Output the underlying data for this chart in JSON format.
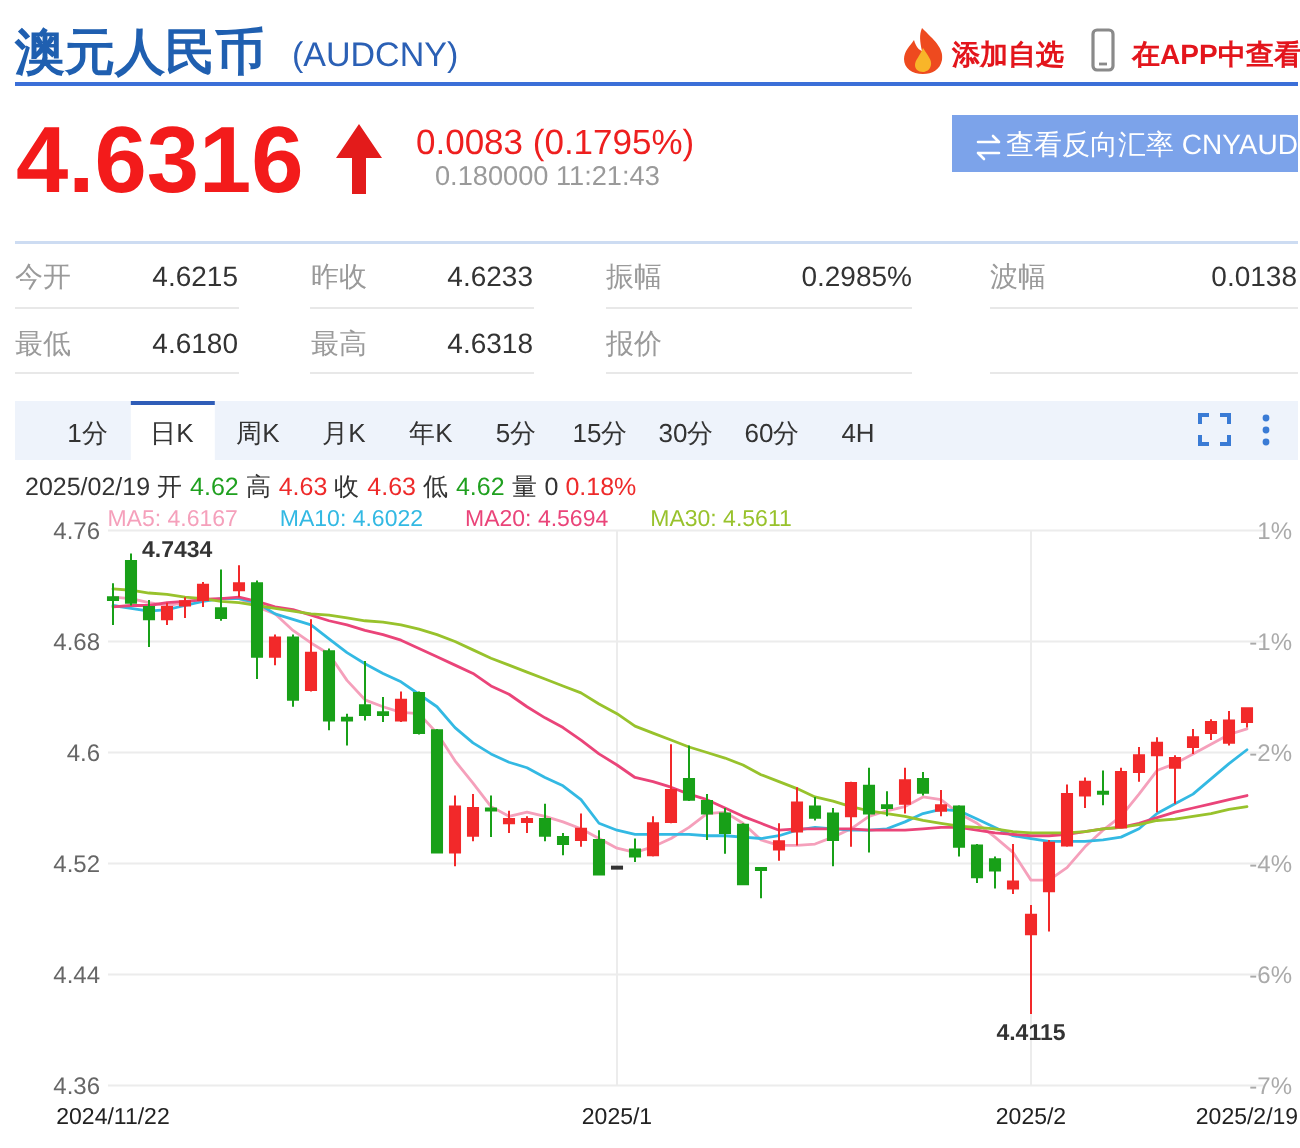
{
  "chart_data": {
    "type": "candlestick",
    "title": "澳元人民币",
    "subtitle": "(AUDCNY)",
    "categories": [
      "2024/11/22",
      null,
      null,
      null,
      null,
      null,
      null,
      null,
      null,
      null,
      null,
      null,
      null,
      null,
      null,
      null,
      null,
      null,
      null,
      null,
      null,
      null,
      null,
      null,
      null,
      null,
      null,
      null,
      "2025/1",
      null,
      null,
      null,
      null,
      null,
      null,
      null,
      null,
      null,
      null,
      null,
      null,
      null,
      null,
      null,
      null,
      null,
      null,
      null,
      null,
      null,
      null,
      "2025/2",
      null,
      null,
      null,
      null,
      null,
      null,
      null,
      null,
      null,
      null,
      null,
      "2025/2/19"
    ],
    "ohlc": [
      [
        4.712,
        4.722,
        4.692,
        4.71
      ],
      [
        4.738,
        4.7434,
        4.706,
        4.708
      ],
      [
        4.705,
        4.71,
        4.676,
        4.696
      ],
      [
        4.696,
        4.708,
        4.692,
        4.705
      ],
      [
        4.706,
        4.712,
        4.697,
        4.709
      ],
      [
        4.71,
        4.723,
        4.705,
        4.721
      ],
      [
        4.704,
        4.732,
        4.695,
        4.697
      ],
      [
        4.717,
        4.735,
        4.712,
        4.722
      ],
      [
        4.722,
        4.724,
        4.653,
        4.669
      ],
      [
        4.669,
        4.685,
        4.663,
        4.683
      ],
      [
        4.683,
        4.685,
        4.633,
        4.638
      ],
      [
        4.645,
        4.696,
        4.644,
        4.672
      ],
      [
        4.673,
        4.675,
        4.616,
        4.623
      ],
      [
        4.625,
        4.628,
        4.605,
        4.623
      ],
      [
        4.634,
        4.666,
        4.623,
        4.627
      ],
      [
        4.629,
        4.64,
        4.622,
        4.627
      ],
      [
        4.623,
        4.644,
        4.622,
        4.638
      ],
      [
        4.643,
        4.644,
        4.613,
        4.614
      ],
      [
        4.616,
        4.617,
        4.528,
        4.528
      ],
      [
        4.528,
        4.569,
        4.518,
        4.561
      ],
      [
        4.54,
        4.57,
        4.536,
        4.56
      ],
      [
        4.559,
        4.569,
        4.539,
        4.558
      ],
      [
        4.549,
        4.558,
        4.542,
        4.552
      ],
      [
        4.55,
        4.554,
        4.542,
        4.552
      ],
      [
        4.552,
        4.563,
        4.536,
        4.54
      ],
      [
        4.539,
        4.542,
        4.526,
        4.534
      ],
      [
        4.537,
        4.556,
        4.532,
        4.545
      ],
      [
        4.537,
        4.544,
        4.512,
        4.512
      ],
      [
        4.517,
        4.517,
        4.517,
        4.517
      ],
      [
        4.53,
        4.538,
        4.521,
        4.525
      ],
      [
        4.526,
        4.554,
        4.525,
        4.549
      ],
      [
        4.55,
        4.606,
        4.549,
        4.573
      ],
      [
        4.581,
        4.605,
        4.565,
        4.566
      ],
      [
        4.565,
        4.57,
        4.537,
        4.556
      ],
      [
        4.556,
        4.56,
        4.527,
        4.542
      ],
      [
        4.548,
        4.549,
        4.505,
        4.505
      ],
      [
        4.516,
        4.517,
        4.495,
        4.515
      ],
      [
        4.53,
        4.549,
        4.522,
        4.536
      ],
      [
        4.543,
        4.575,
        4.533,
        4.564
      ],
      [
        4.561,
        4.568,
        4.551,
        4.553
      ],
      [
        4.556,
        4.56,
        4.518,
        4.537
      ],
      [
        4.554,
        4.579,
        4.532,
        4.578
      ],
      [
        4.576,
        4.589,
        4.528,
        4.556
      ],
      [
        4.562,
        4.572,
        4.554,
        4.56
      ],
      [
        4.563,
        4.589,
        4.556,
        4.58
      ],
      [
        4.581,
        4.586,
        4.569,
        4.571
      ],
      [
        4.558,
        4.573,
        4.554,
        4.562
      ],
      [
        4.561,
        4.562,
        4.525,
        4.532
      ],
      [
        4.533,
        4.534,
        4.506,
        4.51
      ],
      [
        4.523,
        4.525,
        4.502,
        4.515
      ],
      [
        4.502,
        4.534,
        4.498,
        4.507
      ],
      [
        4.469,
        4.49,
        4.4115,
        4.483
      ],
      [
        4.5,
        4.537,
        4.471,
        4.535
      ],
      [
        4.533,
        4.577,
        4.532,
        4.57
      ],
      [
        4.569,
        4.582,
        4.56,
        4.579
      ],
      [
        4.571,
        4.587,
        4.562,
        4.57
      ],
      [
        4.546,
        4.589,
        4.546,
        4.586
      ],
      [
        4.586,
        4.604,
        4.579,
        4.598
      ],
      [
        4.598,
        4.611,
        4.557,
        4.607
      ],
      [
        4.589,
        4.598,
        4.563,
        4.596
      ],
      [
        4.604,
        4.617,
        4.599,
        4.611
      ],
      [
        4.614,
        4.624,
        4.609,
        4.622
      ],
      [
        4.607,
        4.63,
        4.605,
        4.623
      ],
      [
        4.622,
        4.632,
        4.618,
        4.632
      ]
    ],
    "series": [
      {
        "name": "MA5: 4.6167",
        "type": "line",
        "color": "#f5a0bb",
        "values": [
          4.712,
          4.711,
          4.708,
          4.706,
          4.708,
          4.711,
          4.711,
          4.711,
          4.705,
          4.7,
          4.688,
          4.679,
          4.671,
          4.652,
          4.638,
          4.633,
          4.629,
          4.628,
          4.614,
          4.594,
          4.578,
          4.561,
          4.554,
          4.557,
          4.554,
          4.55,
          4.545,
          4.538,
          4.531,
          4.528,
          4.532,
          4.538,
          4.546,
          4.556,
          4.557,
          4.549,
          4.537,
          4.533,
          4.533,
          4.534,
          4.539,
          4.545,
          4.554,
          4.558,
          4.561,
          4.568,
          4.566,
          4.556,
          4.549,
          4.539,
          4.528,
          4.508,
          4.508,
          4.517,
          4.532,
          4.544,
          4.554,
          4.57,
          4.587,
          4.592,
          4.599,
          4.606,
          4.613,
          4.617
        ]
      },
      {
        "name": "MA10: 4.6022",
        "type": "line",
        "color": "#33b9e3",
        "values": [
          4.706,
          4.704,
          4.702,
          4.703,
          4.706,
          4.709,
          4.711,
          4.711,
          4.708,
          4.7,
          4.696,
          4.692,
          4.682,
          4.672,
          4.664,
          4.657,
          4.651,
          4.642,
          4.633,
          4.618,
          4.607,
          4.599,
          4.593,
          4.589,
          4.582,
          4.576,
          4.566,
          4.549,
          4.544,
          4.541,
          4.541,
          4.541,
          4.541,
          4.54,
          4.54,
          4.539,
          4.538,
          4.54,
          4.544,
          4.546,
          4.545,
          4.544,
          4.544,
          4.545,
          4.55,
          4.556,
          4.559,
          4.558,
          4.552,
          4.546,
          4.54,
          4.538,
          4.536,
          4.536,
          4.536,
          4.537,
          4.539,
          4.545,
          4.556,
          4.563,
          4.57,
          4.581,
          4.592,
          4.602
        ]
      },
      {
        "name": "MA20: 4.5694",
        "type": "line",
        "color": "#ea4479",
        "values": [
          4.705,
          4.706,
          4.706,
          4.708,
          4.709,
          4.71,
          4.711,
          4.712,
          4.709,
          4.705,
          4.703,
          4.699,
          4.695,
          4.692,
          4.688,
          4.685,
          4.681,
          4.675,
          4.669,
          4.663,
          4.657,
          4.648,
          4.642,
          4.633,
          4.625,
          4.618,
          4.609,
          4.599,
          4.591,
          4.582,
          4.579,
          4.575,
          4.57,
          4.566,
          4.56,
          4.554,
          4.549,
          4.544,
          4.545,
          4.545,
          4.545,
          4.545,
          4.544,
          4.544,
          4.544,
          4.545,
          4.546,
          4.546,
          4.544,
          4.542,
          4.541,
          4.54,
          4.54,
          4.541,
          4.543,
          4.545,
          4.546,
          4.549,
          4.553,
          4.557,
          4.56,
          4.563,
          4.566,
          4.569
        ]
      },
      {
        "name": "MA30: 4.5611",
        "type": "line",
        "color": "#98c22c",
        "values": [
          4.718,
          4.717,
          4.715,
          4.714,
          4.712,
          4.711,
          4.709,
          4.708,
          4.706,
          4.704,
          4.702,
          4.7,
          4.699,
          4.697,
          4.695,
          4.694,
          4.692,
          4.689,
          4.685,
          4.68,
          4.674,
          4.668,
          4.663,
          4.658,
          4.653,
          4.648,
          4.643,
          4.635,
          4.628,
          4.619,
          4.614,
          4.609,
          4.604,
          4.6,
          4.596,
          4.591,
          4.584,
          4.579,
          4.574,
          4.568,
          4.565,
          4.561,
          4.558,
          4.556,
          4.554,
          4.551,
          4.549,
          4.547,
          4.546,
          4.545,
          4.543,
          4.542,
          4.542,
          4.542,
          4.543,
          4.545,
          4.546,
          4.548,
          4.551,
          4.552,
          4.554,
          4.556,
          4.559,
          4.561
        ]
      }
    ],
    "ylim": [
      4.36,
      4.76
    ],
    "yticks": [
      4.76,
      4.68,
      4.6,
      4.52,
      4.44,
      4.36
    ],
    "y2lim": [
      -7.5,
      1.0
    ],
    "y2ticks": [
      {
        "value": 1.0,
        "label": "1%"
      },
      {
        "value": -0.7,
        "label": "-1%"
      },
      {
        "value": -2.4,
        "label": "-2%"
      },
      {
        "value": -4.1,
        "label": "-4%"
      },
      {
        "value": -5.8,
        "label": "-6%"
      },
      {
        "value": -7.5,
        "label": "-7%"
      }
    ],
    "grid": true,
    "legend": "top left",
    "annotations": [
      "4.6316",
      "0.0083 (0.1795%)",
      "0.180000 11:21:43",
      "查看反向汇率 CNYAUD",
      "添加自选",
      "在APP中查看",
      "今开",
      "4.6215",
      "昨收",
      "4.6233",
      "振幅",
      "0.2985%",
      "波幅",
      "0.0138",
      "最低",
      "4.6180",
      "最高",
      "4.6318",
      "报价",
      "1分",
      "日K",
      "周K",
      "月K",
      "年K",
      "5分",
      "15分",
      "30分",
      "60分",
      "4H",
      "2025/02/19 开 4.62 高 4.63 收 4.63 低 4.62 量 0 0.18%",
      "4.7434",
      {
        "text": "4.4115",
        "y": 4.4115
      }
    ]
  }
}
